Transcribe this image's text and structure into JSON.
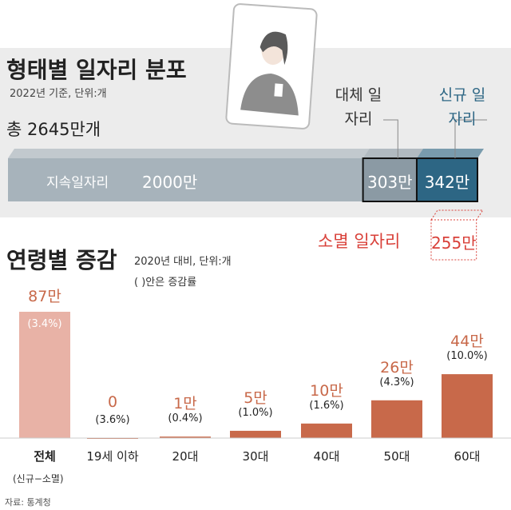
{
  "chart_data": [
    {
      "type": "stacked-hbar",
      "title": "형태별 일자리 분포",
      "subtitle": "2022년 기준, 단위:개",
      "annotation": "총 2645만개",
      "xlim": [
        0,
        2645
      ],
      "series": [
        {
          "name": "지속일자리",
          "color": "#a7b3bb",
          "values": [
            2000
          ],
          "value_labels": [
            "2000만"
          ]
        },
        {
          "name": "대체 일자리",
          "color": "#8b9aa4",
          "values": [
            303
          ],
          "value_labels": [
            "303만"
          ]
        },
        {
          "name": "신규 일자리",
          "color": "#2d6684",
          "values": [
            342
          ],
          "value_labels": [
            "342만"
          ]
        }
      ],
      "removed": {
        "name": "소멸 일자리",
        "color": "#d9413a",
        "values": [
          255
        ],
        "value_labels": [
          "255만"
        ]
      }
    },
    {
      "type": "bar",
      "title": "연령별 증감",
      "subtitle": "2020년 대비, 단위:개",
      "note": "( )안은 증감률",
      "categories": [
        "전체",
        "19세 이하",
        "20대",
        "30대",
        "40대",
        "50대",
        "60대"
      ],
      "category_note": "(신규−소멸)",
      "values": [
        87,
        0,
        1,
        5,
        10,
        26,
        44
      ],
      "value_labels": [
        "87만",
        "0",
        "1만",
        "5만",
        "10만",
        "26만",
        "44만"
      ],
      "rates": [
        3.4,
        3.6,
        0.4,
        1.0,
        1.6,
        4.3,
        10.0
      ],
      "rate_labels": [
        "(3.4%)",
        "(3.6%)",
        "(0.4%)",
        "(1.0%)",
        "(1.6%)",
        "(4.3%)",
        "(10.0%)"
      ],
      "colors": [
        "#e8b2a6",
        "#c8694a",
        "#c8694a",
        "#c8694a",
        "#c8694a",
        "#c8694a",
        "#c8694a"
      ],
      "ylim": [
        0,
        87
      ]
    },
    {
      "type": "source",
      "text": "자료: 통계청"
    }
  ]
}
